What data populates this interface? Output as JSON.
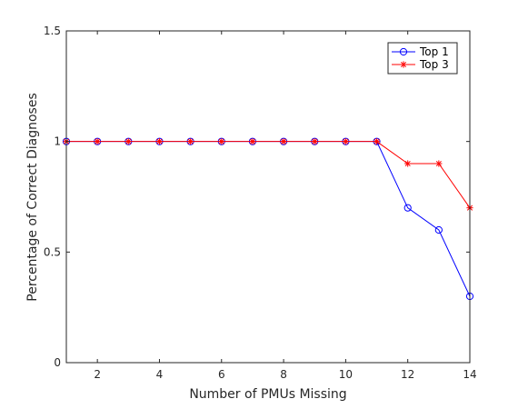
{
  "chart_data": {
    "type": "line",
    "xlabel": "Number of PMUs Missing",
    "ylabel": "Percentage of Correct Diagnoses",
    "xlim": [
      1,
      14
    ],
    "ylim": [
      0,
      1.5
    ],
    "x_ticks": [
      2,
      4,
      6,
      8,
      10,
      12,
      14
    ],
    "x_tick_labels": [
      "2",
      "4",
      "6",
      "8",
      "10",
      "12",
      "14"
    ],
    "y_ticks": [
      0,
      0.5,
      1,
      1.5
    ],
    "y_tick_labels": [
      "0",
      "0.5",
      "1",
      "1.5"
    ],
    "grid": false,
    "legend_position": "top-right",
    "x": [
      1,
      2,
      3,
      4,
      5,
      6,
      7,
      8,
      9,
      10,
      11,
      12,
      13,
      14
    ],
    "series": [
      {
        "name": "Top 1",
        "color": "#0000ff",
        "marker": "circle",
        "values": [
          1,
          1,
          1,
          1,
          1,
          1,
          1,
          1,
          1,
          1,
          1,
          0.7,
          0.6,
          0.3
        ]
      },
      {
        "name": "Top 3",
        "color": "#ff0000",
        "marker": "asterisk",
        "values": [
          1,
          1,
          1,
          1,
          1,
          1,
          1,
          1,
          1,
          1,
          1,
          0.9,
          0.9,
          0.7
        ]
      }
    ]
  }
}
